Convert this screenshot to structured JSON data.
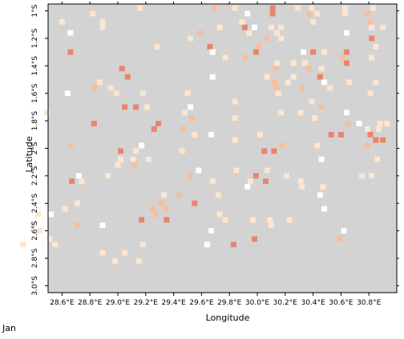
{
  "chart_data": {
    "type": "heatmap",
    "xlabel": "Longitude",
    "ylabel": "Latitude",
    "xlim": [
      28.5,
      31.0
    ],
    "ylim": [
      -3.05,
      -0.95
    ],
    "cell_size_deg": 0.04,
    "background_color": "#d3d3d3",
    "grid": false,
    "legend": "none",
    "x_ticks": [
      "28.6°E",
      "28.8°E",
      "29.0°E",
      "29.2°E",
      "29.4°E",
      "29.6°E",
      "29.8°E",
      "30.0°E",
      "30.2°E",
      "30.4°E",
      "30.6°E",
      "30.8°E"
    ],
    "y_ticks": [
      "1°S",
      "1.2°S",
      "1.4°S",
      "1.6°S",
      "1.8°S",
      "2°S",
      "2.2°S",
      "2.4°S",
      "2.6°S",
      "2.8°S",
      "3.0°S"
    ],
    "x_tick_values": [
      28.6,
      28.8,
      29.0,
      29.2,
      29.4,
      29.6,
      29.8,
      30.0,
      30.2,
      30.4,
      30.6,
      30.8
    ],
    "y_tick_values": [
      -1.0,
      -1.2,
      -1.4,
      -1.6,
      -1.8,
      -2.0,
      -2.2,
      -2.4,
      -2.6,
      -2.8,
      -3.0
    ],
    "category_colors": {
      "1": "#ffffff",
      "2": "#fde5cf",
      "3": "#f6bf9c",
      "4": "#e8856c"
    },
    "cells": [
      [
        29.16,
        -0.98,
        2
      ],
      [
        29.69,
        -0.98,
        3
      ],
      [
        29.84,
        -0.98,
        2
      ],
      [
        30.11,
        -0.98,
        4
      ],
      [
        30.29,
        -0.98,
        2
      ],
      [
        30.39,
        -0.98,
        2
      ],
      [
        30.63,
        -0.98,
        2
      ],
      [
        30.83,
        -0.98,
        2
      ],
      [
        28.82,
        -1.02,
        2
      ],
      [
        29.93,
        -1.02,
        1
      ],
      [
        30.11,
        -1.02,
        4
      ],
      [
        30.37,
        -1.02,
        3
      ],
      [
        30.43,
        -1.02,
        2
      ],
      [
        30.63,
        -1.02,
        2
      ],
      [
        30.79,
        -1.02,
        3
      ],
      [
        28.6,
        -1.08,
        2
      ],
      [
        28.89,
        -1.08,
        2
      ],
      [
        29.89,
        -1.08,
        2
      ],
      [
        30.4,
        -1.08,
        2
      ],
      [
        30.81,
        -1.08,
        3
      ],
      [
        28.89,
        -1.12,
        2
      ],
      [
        29.73,
        -1.12,
        2
      ],
      [
        29.91,
        -1.12,
        4
      ],
      [
        29.98,
        -1.12,
        1
      ],
      [
        30.1,
        -1.12,
        2
      ],
      [
        30.17,
        -1.12,
        2
      ],
      [
        30.82,
        -1.12,
        2
      ],
      [
        30.9,
        -1.12,
        2
      ],
      [
        28.66,
        -1.16,
        1
      ],
      [
        29.59,
        -1.16,
        3
      ],
      [
        29.94,
        -1.16,
        2
      ],
      [
        30.14,
        -1.16,
        2
      ],
      [
        30.64,
        -1.16,
        1
      ],
      [
        29.52,
        -1.2,
        2
      ],
      [
        30.07,
        -1.2,
        3
      ],
      [
        30.17,
        -1.2,
        2
      ],
      [
        30.82,
        -1.2,
        4
      ],
      [
        29.28,
        -1.26,
        2
      ],
      [
        29.66,
        -1.26,
        4
      ],
      [
        30.01,
        -1.26,
        3
      ],
      [
        30.85,
        -1.26,
        2
      ],
      [
        28.66,
        -1.3,
        4
      ],
      [
        29.68,
        -1.3,
        1
      ],
      [
        29.99,
        -1.3,
        4
      ],
      [
        30.33,
        -1.3,
        1
      ],
      [
        30.4,
        -1.3,
        4
      ],
      [
        30.48,
        -1.3,
        2
      ],
      [
        30.64,
        -1.3,
        4
      ],
      [
        29.91,
        -1.34,
        3
      ],
      [
        29.77,
        -1.34,
        2
      ],
      [
        30.61,
        -1.34,
        3
      ],
      [
        30.82,
        -1.34,
        2
      ],
      [
        30.14,
        -1.38,
        2
      ],
      [
        30.26,
        -1.38,
        2
      ],
      [
        30.34,
        -1.38,
        2
      ],
      [
        30.64,
        -1.38,
        4
      ],
      [
        29.03,
        -1.42,
        4
      ],
      [
        30.13,
        -1.42,
        3
      ],
      [
        30.37,
        -1.42,
        3
      ],
      [
        30.46,
        -1.42,
        2
      ],
      [
        29.07,
        -1.48,
        4
      ],
      [
        29.68,
        -1.48,
        1
      ],
      [
        30.07,
        -1.48,
        2
      ],
      [
        30.26,
        -1.48,
        2
      ],
      [
        30.45,
        -1.48,
        4
      ],
      [
        28.87,
        -1.52,
        2
      ],
      [
        30.12,
        -1.52,
        3
      ],
      [
        30.22,
        -1.52,
        2
      ],
      [
        30.48,
        -1.52,
        1
      ],
      [
        30.66,
        -1.52,
        2
      ],
      [
        30.85,
        -1.52,
        2
      ],
      [
        28.83,
        -1.56,
        3
      ],
      [
        28.95,
        -1.56,
        2
      ],
      [
        30.14,
        -1.56,
        3
      ],
      [
        30.32,
        -1.56,
        3
      ],
      [
        30.52,
        -1.56,
        2
      ],
      [
        28.64,
        -1.6,
        1
      ],
      [
        28.99,
        -1.6,
        2
      ],
      [
        29.18,
        -1.6,
        2
      ],
      [
        29.5,
        -1.6,
        2
      ],
      [
        30.15,
        -1.6,
        2
      ],
      [
        30.81,
        -1.6,
        2
      ],
      [
        29.84,
        -1.66,
        2
      ],
      [
        30.39,
        -1.66,
        2
      ],
      [
        29.05,
        -1.7,
        4
      ],
      [
        29.13,
        -1.7,
        4
      ],
      [
        29.21,
        -1.7,
        2
      ],
      [
        29.52,
        -1.7,
        1
      ],
      [
        30.46,
        -1.7,
        3
      ],
      [
        28.49,
        -1.74,
        2
      ],
      [
        29.48,
        -1.74,
        2
      ],
      [
        30.17,
        -1.74,
        2
      ],
      [
        30.31,
        -1.74,
        2
      ],
      [
        30.64,
        -1.74,
        1
      ],
      [
        29.53,
        -1.78,
        3
      ],
      [
        29.84,
        -1.78,
        2
      ],
      [
        30.41,
        -1.78,
        2
      ],
      [
        28.83,
        -1.82,
        4
      ],
      [
        29.29,
        -1.82,
        4
      ],
      [
        30.65,
        -1.82,
        3
      ],
      [
        30.73,
        -1.82,
        1
      ],
      [
        30.88,
        -1.82,
        2
      ],
      [
        30.93,
        -1.82,
        2
      ],
      [
        29.26,
        -1.86,
        4
      ],
      [
        29.47,
        -1.86,
        3
      ],
      [
        30.79,
        -1.86,
        2
      ],
      [
        30.87,
        -1.86,
        2
      ],
      [
        29.55,
        -1.9,
        2
      ],
      [
        29.67,
        -1.9,
        1
      ],
      [
        30.02,
        -1.9,
        2
      ],
      [
        30.53,
        -1.9,
        4
      ],
      [
        30.6,
        -1.9,
        4
      ],
      [
        30.81,
        -1.9,
        4
      ],
      [
        29.84,
        -1.94,
        2
      ],
      [
        30.85,
        -1.94,
        4
      ],
      [
        30.9,
        -1.94,
        4
      ],
      [
        28.66,
        -1.98,
        3
      ],
      [
        29.17,
        -1.98,
        1
      ],
      [
        30.18,
        -1.98,
        3
      ],
      [
        30.43,
        -1.98,
        2
      ],
      [
        30.79,
        -1.98,
        3
      ],
      [
        29.02,
        -2.02,
        4
      ],
      [
        29.13,
        -2.02,
        2
      ],
      [
        29.46,
        -2.02,
        2
      ],
      [
        30.05,
        -2.02,
        4
      ],
      [
        30.12,
        -2.02,
        4
      ],
      [
        29.02,
        -2.08,
        2
      ],
      [
        29.11,
        -2.08,
        2
      ],
      [
        29.22,
        -2.08,
        2
      ],
      [
        30.46,
        -2.08,
        1
      ],
      [
        30.86,
        -2.08,
        2
      ],
      [
        29.0,
        -2.12,
        2
      ],
      [
        29.12,
        -2.12,
        3
      ],
      [
        29.58,
        -2.16,
        1
      ],
      [
        29.85,
        -2.16,
        2
      ],
      [
        30.07,
        -2.16,
        2
      ],
      [
        28.72,
        -2.2,
        1
      ],
      [
        28.93,
        -2.2,
        2
      ],
      [
        29.52,
        -2.2,
        3
      ],
      [
        29.99,
        -2.2,
        4
      ],
      [
        30.21,
        -2.2,
        2
      ],
      [
        30.75,
        -2.2,
        2
      ],
      [
        30.82,
        -2.2,
        2
      ],
      [
        28.67,
        -2.24,
        4
      ],
      [
        28.74,
        -2.24,
        2
      ],
      [
        29.68,
        -2.24,
        2
      ],
      [
        29.95,
        -2.24,
        2
      ],
      [
        30.06,
        -2.24,
        4
      ],
      [
        30.31,
        -2.24,
        2
      ],
      [
        29.93,
        -2.28,
        1
      ],
      [
        30.32,
        -2.28,
        2
      ],
      [
        30.47,
        -2.28,
        2
      ],
      [
        29.33,
        -2.34,
        2
      ],
      [
        29.44,
        -2.34,
        3
      ],
      [
        29.72,
        -2.34,
        2
      ],
      [
        30.45,
        -2.34,
        1
      ],
      [
        28.71,
        -2.4,
        2
      ],
      [
        29.31,
        -2.4,
        3
      ],
      [
        29.55,
        -2.4,
        4
      ],
      [
        28.62,
        -2.44,
        2
      ],
      [
        29.25,
        -2.44,
        3
      ],
      [
        29.34,
        -2.44,
        3
      ],
      [
        30.48,
        -2.44,
        1
      ],
      [
        28.43,
        -2.48,
        2
      ],
      [
        28.52,
        -2.48,
        1
      ],
      [
        29.27,
        -2.48,
        3
      ],
      [
        29.73,
        -2.48,
        2
      ],
      [
        28.44,
        -2.52,
        1
      ],
      [
        29.17,
        -2.52,
        4
      ],
      [
        29.35,
        -2.52,
        4
      ],
      [
        29.77,
        -2.52,
        2
      ],
      [
        29.97,
        -2.52,
        2
      ],
      [
        30.09,
        -2.52,
        2
      ],
      [
        30.23,
        -2.52,
        2
      ],
      [
        28.39,
        -2.56,
        2
      ],
      [
        28.71,
        -2.56,
        3
      ],
      [
        28.89,
        -2.56,
        1
      ],
      [
        30.1,
        -2.56,
        2
      ],
      [
        28.44,
        -2.6,
        2
      ],
      [
        29.67,
        -2.6,
        1
      ],
      [
        30.62,
        -2.6,
        1
      ],
      [
        28.51,
        -2.66,
        2
      ],
      [
        29.98,
        -2.66,
        4
      ],
      [
        30.59,
        -2.66,
        3
      ],
      [
        28.32,
        -2.7,
        2
      ],
      [
        28.55,
        -2.7,
        2
      ],
      [
        29.18,
        -2.7,
        2
      ],
      [
        29.64,
        -2.7,
        1
      ],
      [
        29.83,
        -2.7,
        4
      ],
      [
        28.89,
        -2.76,
        2
      ],
      [
        29.05,
        -2.76,
        2
      ],
      [
        28.98,
        -2.82,
        2
      ],
      [
        29.15,
        -2.82,
        2
      ]
    ],
    "caption": "Jan"
  }
}
